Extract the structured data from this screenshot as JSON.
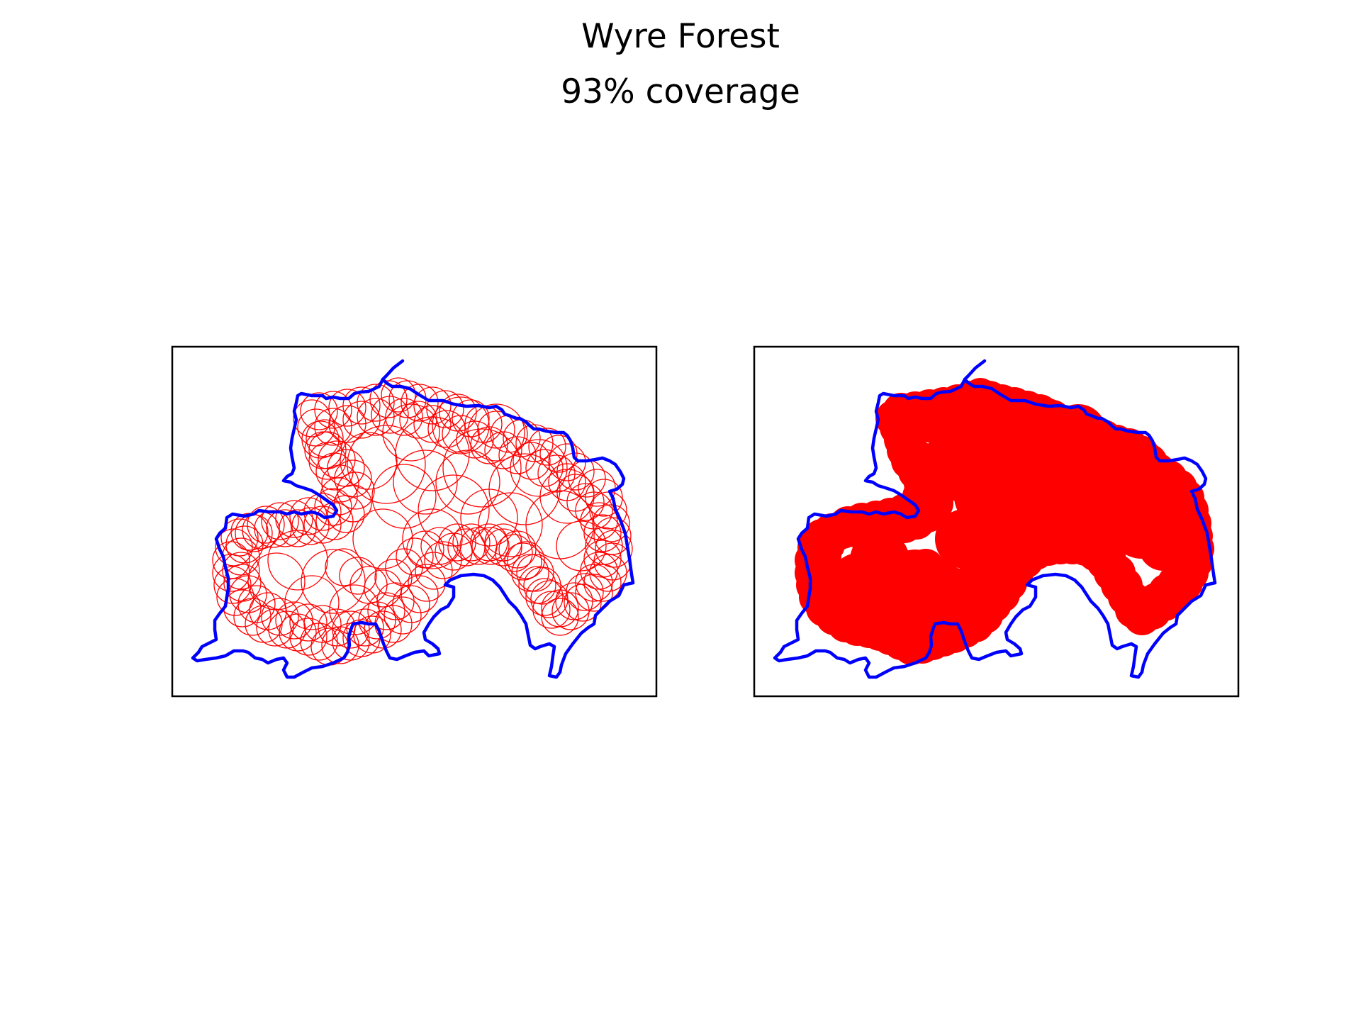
{
  "figure": {
    "title": "Wyre Forest",
    "subtitle": "93% coverage"
  },
  "colors": {
    "boundary": "#0000ff",
    "coverage": "#ff0000",
    "frame": "#000000",
    "background": "#ffffff"
  },
  "panels": [
    {
      "name": "circle-outlines",
      "style": "outlined circles"
    },
    {
      "name": "coverage-union",
      "style": "filled circles"
    }
  ]
}
